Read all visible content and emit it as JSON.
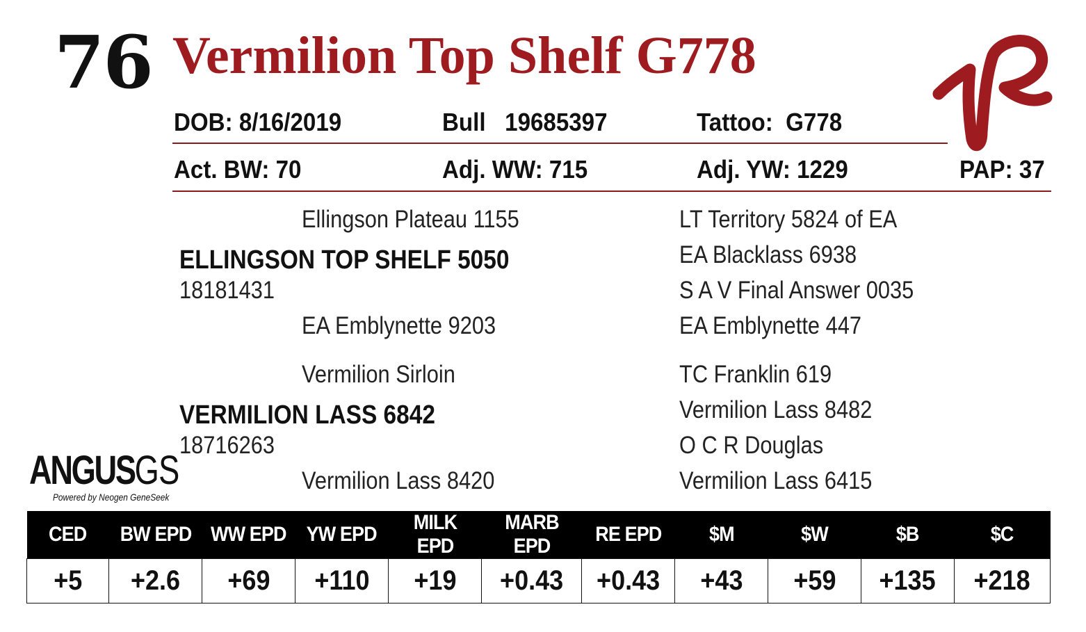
{
  "lot_number": "76",
  "animal_name": "Vermilion Top Shelf G778",
  "logo": {
    "icon": "vermilion-ranch-brand-logo",
    "color": "#9e1b1f"
  },
  "info_row_1": {
    "dob": "DOB: 8/16/2019",
    "registration": "Bull   19685397",
    "tattoo": "Tattoo:  G778"
  },
  "info_row_2": {
    "bw": "Act. BW: 70",
    "ww": "Adj. WW: 715",
    "yw": "Adj. YW: 1229",
    "pap": "PAP: 37"
  },
  "pedigree": {
    "sire": {
      "sire_of_sire": "Ellingson Plateau 1155",
      "name": "ELLINGSON TOP SHELF 5050",
      "registration": "18181431",
      "dam_of_sire": "EA Emblynette 9203",
      "third_generation": [
        "LT Territory 5824 of EA",
        "EA Blacklass 6938",
        "S A V Final Answer 0035",
        "EA Emblynette 447"
      ]
    },
    "dam": {
      "sire_of_dam": "Vermilion Sirloin",
      "name": "VERMILION LASS 6842",
      "registration": "18716263",
      "dam_of_dam": "Vermilion Lass 8420",
      "third_generation": [
        "TC Franklin 619",
        "Vermilion Lass 8482",
        "O C R Douglas",
        "Vermilion Lass 6415"
      ]
    }
  },
  "genomics_logo": {
    "main": "ANGUS",
    "suffix": "GS",
    "tagline": "Powered by Neogen GeneSeek"
  },
  "epd_table": {
    "headers": [
      "CED",
      "BW EPD",
      "WW EPD",
      "YW EPD",
      "MILK EPD",
      "MARB EPD",
      "RE EPD",
      "$M",
      "$W",
      "$B",
      "$C"
    ],
    "values": [
      "+5",
      "+2.6",
      "+69",
      "+110",
      "+19",
      "+0.43",
      "+0.43",
      "+43",
      "+59",
      "+135",
      "+218"
    ]
  }
}
